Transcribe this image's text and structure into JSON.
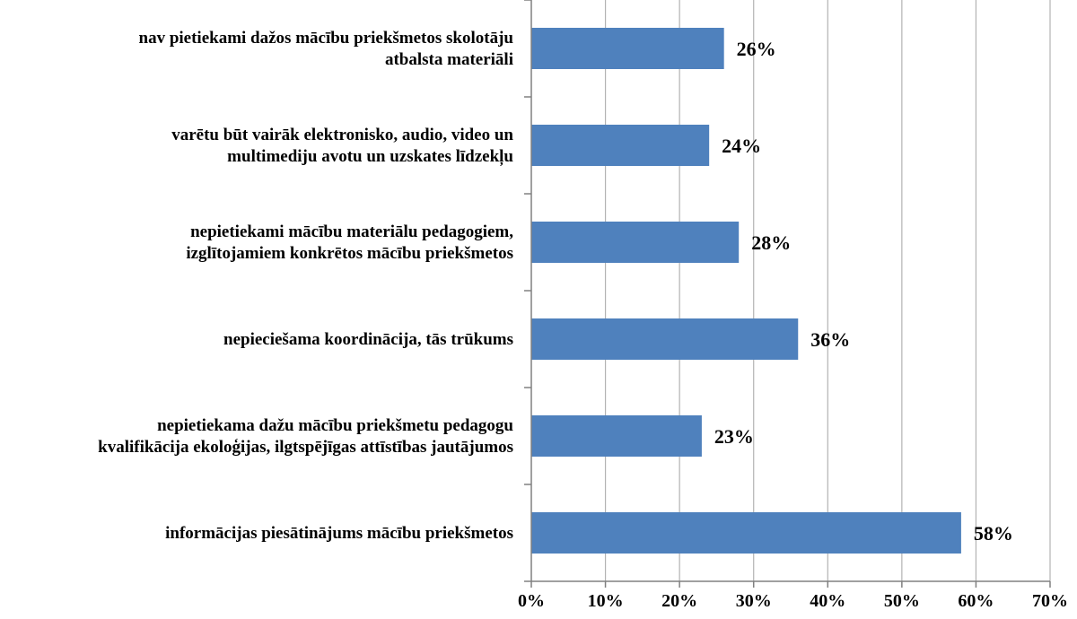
{
  "chart_data": {
    "type": "bar",
    "orientation": "horizontal",
    "title": "",
    "xlabel": "",
    "ylabel": "",
    "categories": [
      [
        "nav pietiekami dažos mācību priekšmetos skolotāju",
        "atbalsta materiāli"
      ],
      [
        "varētu būt vairāk elektronisko, audio, video un",
        "multimediju avotu un uzskates līdzekļu"
      ],
      [
        "nepietiekami mācību materiālu pedagogiem,",
        "izglītojamiem konkrētos mācību priekšmetos"
      ],
      [
        "nepieciešama koordinācija, tās trūkums"
      ],
      [
        "nepietiekama dažu mācību priekšmetu pedagogu",
        "kvalifikācija ekoloģijas, ilgtspējīgas attīstības jautājumos"
      ],
      [
        "informācijas piesātinājums mācību priekšmetos"
      ]
    ],
    "values": [
      26,
      24,
      28,
      36,
      23,
      58
    ],
    "value_labels": [
      "26%",
      "24%",
      "28%",
      "36%",
      "23%",
      "58%"
    ],
    "xlim": [
      0,
      70
    ],
    "xticks": [
      0,
      10,
      20,
      30,
      40,
      50,
      60,
      70
    ],
    "xtick_labels": [
      "0%",
      "10%",
      "20%",
      "30%",
      "40%",
      "50%",
      "60%",
      "70%"
    ],
    "grid": "vertical",
    "legend": "none",
    "colors": {
      "bar": "#4f81bd",
      "grid": "#b3b3b3",
      "axis": "#808080"
    }
  }
}
